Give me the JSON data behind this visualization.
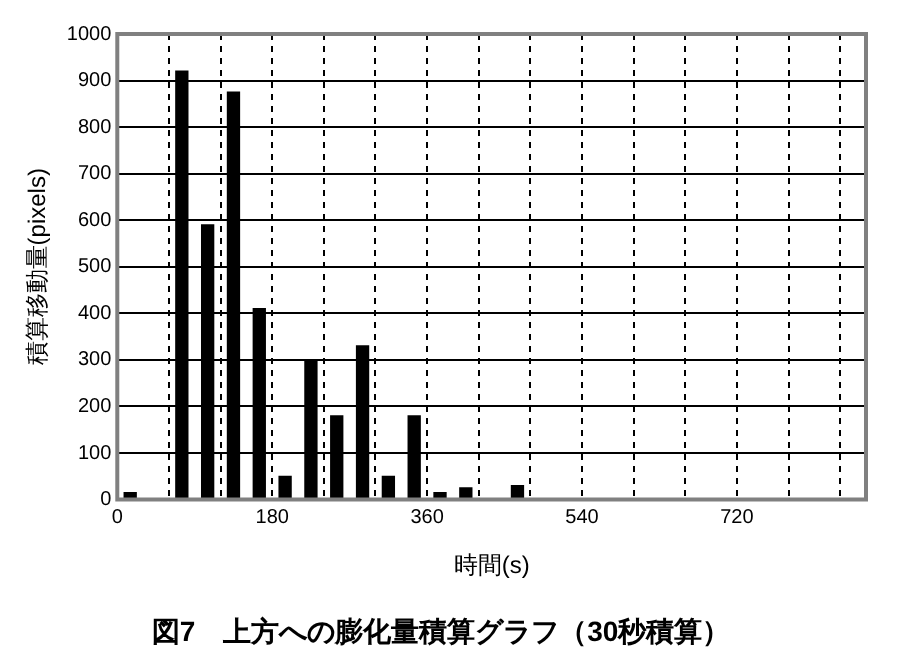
{
  "chart_data": {
    "type": "bar",
    "title": "図7　上方への膨化量積算グラフ（30秒積算）",
    "xlabel": "時間(s)",
    "ylabel": "積算移動量(pixels)",
    "x": [
      15,
      75,
      105,
      135,
      165,
      195,
      225,
      255,
      285,
      315,
      345,
      375,
      405,
      465
    ],
    "values": [
      15,
      920,
      590,
      875,
      410,
      50,
      300,
      180,
      330,
      50,
      180,
      15,
      25,
      30
    ],
    "color": "#000000",
    "xlim": [
      0,
      870
    ],
    "xticks": [
      0,
      {
        "value": 60,
        "label": null
      },
      {
        "value": 120,
        "label": null
      },
      180,
      {
        "value": 240,
        "label": null
      },
      {
        "value": 300,
        "label": null
      },
      360,
      {
        "value": 420,
        "label": null
      },
      {
        "value": 480,
        "label": null
      },
      540,
      {
        "value": 600,
        "label": null
      },
      {
        "value": 660,
        "label": null
      },
      720,
      {
        "value": 780,
        "label": null
      },
      {
        "value": 840,
        "label": null
      }
    ],
    "ylim": [
      0,
      1000
    ],
    "yticks": [
      0,
      100,
      200,
      300,
      400,
      500,
      600,
      700,
      800,
      900,
      1000
    ],
    "grid": true
  }
}
